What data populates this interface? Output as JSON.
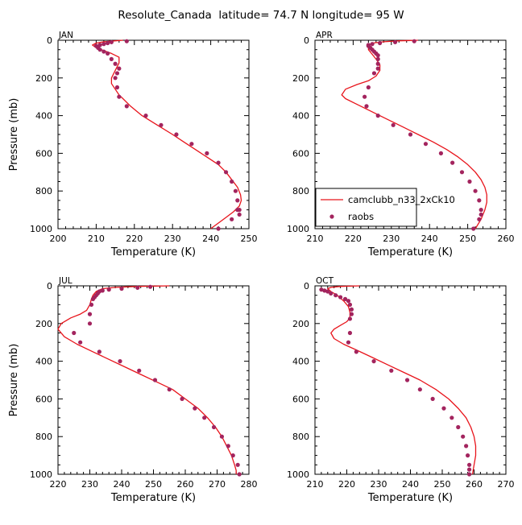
{
  "title": "Resolute_Canada  latitude= 74.7 N longitude= 95 W",
  "chart_data": [
    {
      "type": "line",
      "panel": "JAN",
      "xlabel": "Temperature (K)",
      "ylabel": "Pressure (mb)",
      "xlim": [
        200,
        250
      ],
      "ylim": [
        1000,
        0
      ],
      "xticks": [
        200,
        210,
        220,
        230,
        240,
        250
      ],
      "yticks": [
        0,
        200,
        400,
        600,
        800,
        1000
      ],
      "series": [
        {
          "name": "camclubb_n33_2xCk10",
          "kind": "line",
          "color": "#e8141b",
          "x": [
            217,
            215,
            212,
            210,
            209,
            210,
            212,
            214,
            216,
            216,
            215,
            214,
            214,
            215,
            216,
            217,
            219,
            222,
            226,
            230,
            233,
            236,
            239,
            242,
            244,
            245.5,
            247,
            247.8,
            248,
            247.5,
            246,
            244,
            242,
            240
          ],
          "y": [
            0,
            3,
            8,
            15,
            25,
            40,
            55,
            70,
            90,
            120,
            160,
            200,
            230,
            260,
            290,
            310,
            350,
            400,
            450,
            500,
            540,
            580,
            620,
            660,
            700,
            740,
            780,
            820,
            850,
            880,
            910,
            940,
            970,
            1000
          ]
        },
        {
          "name": "raobs",
          "kind": "scatter",
          "color": "#a3245e",
          "x": [
            218,
            214,
            213,
            212,
            211,
            210,
            210.5,
            211,
            212,
            213,
            214,
            215,
            216,
            215.5,
            215,
            215.5,
            216,
            218,
            223,
            227,
            231,
            235,
            239,
            242,
            244,
            245.5,
            246.5,
            247,
            247.5,
            247.5,
            247,
            245.5,
            242
          ],
          "y": [
            5,
            10,
            15,
            20,
            25,
            30,
            40,
            50,
            60,
            70,
            100,
            125,
            150,
            175,
            200,
            250,
            300,
            350,
            400,
            450,
            500,
            550,
            600,
            650,
            700,
            750,
            800,
            850,
            900,
            925,
            900,
            950,
            1000
          ]
        }
      ]
    },
    {
      "type": "line",
      "panel": "APR",
      "xlabel": "Temperature (K)",
      "ylabel": "",
      "xlim": [
        210,
        260
      ],
      "ylim": [
        1000,
        0
      ],
      "xticks": [
        210,
        220,
        230,
        240,
        250,
        260
      ],
      "yticks": [
        0,
        200,
        400,
        600,
        800,
        1000
      ],
      "legend": {
        "placement": "lower-left",
        "entries": [
          "camclubb_n33_2xCk10",
          "raobs"
        ]
      },
      "series": [
        {
          "name": "camclubb_n33_2xCk10",
          "kind": "line",
          "color": "#e8141b",
          "x": [
            237,
            232,
            228,
            225,
            224,
            224,
            225,
            226,
            227,
            227,
            226,
            224,
            221,
            218,
            217,
            218,
            221,
            225,
            229,
            233,
            237,
            241,
            244.5,
            247.5,
            250,
            252,
            253.5,
            254.5,
            255,
            255,
            254.5,
            253.5,
            252
          ],
          "y": [
            0,
            3,
            8,
            15,
            30,
            50,
            75,
            100,
            130,
            160,
            190,
            215,
            235,
            260,
            290,
            310,
            340,
            380,
            420,
            460,
            500,
            540,
            580,
            620,
            660,
            700,
            740,
            780,
            820,
            860,
            900,
            950,
            1000
          ]
        },
        {
          "name": "raobs",
          "kind": "scatter",
          "color": "#a3245e",
          "x": [
            236,
            231,
            227,
            225,
            224,
            224,
            224.5,
            225,
            225.5,
            226,
            226.5,
            226.5,
            226.5,
            226.5,
            225.5,
            224,
            223,
            223.5,
            226.5,
            230.5,
            235,
            239,
            243,
            246,
            248.5,
            250.5,
            252,
            253,
            253.5,
            253.5,
            253,
            251.5
          ],
          "y": [
            5,
            10,
            15,
            20,
            25,
            30,
            40,
            50,
            60,
            70,
            80,
            100,
            125,
            150,
            175,
            250,
            300,
            350,
            400,
            450,
            500,
            550,
            600,
            650,
            700,
            750,
            800,
            850,
            900,
            925,
            950,
            1000
          ]
        }
      ]
    },
    {
      "type": "line",
      "panel": "JUL",
      "xlabel": "Temperature (K)",
      "ylabel": "Pressure (mb)",
      "xlim": [
        220,
        280
      ],
      "ylim": [
        1000,
        0
      ],
      "xticks": [
        220,
        230,
        240,
        250,
        260,
        270,
        280
      ],
      "yticks": [
        0,
        200,
        400,
        600,
        800,
        1000
      ],
      "series": [
        {
          "name": "camclubb_n33_2xCk10",
          "kind": "line",
          "color": "#e8141b",
          "x": [
            255,
            245,
            238,
            234,
            232,
            231,
            230.5,
            230,
            229,
            227,
            224,
            221,
            220,
            222,
            226,
            231,
            236,
            241,
            246,
            251,
            256,
            260,
            264,
            267,
            269.5,
            271.5,
            273,
            274.5,
            275.5,
            276,
            276
          ],
          "y": [
            0,
            3,
            8,
            15,
            30,
            50,
            70,
            100,
            130,
            150,
            170,
            200,
            230,
            270,
            310,
            350,
            390,
            430,
            470,
            510,
            550,
            600,
            650,
            700,
            750,
            800,
            850,
            900,
            950,
            980,
            1000
          ]
        },
        {
          "name": "raobs",
          "kind": "scatter",
          "color": "#a3245e",
          "x": [
            249,
            245,
            240,
            236,
            234,
            233,
            232.5,
            232,
            231.5,
            231,
            230.5,
            230,
            230,
            225,
            227,
            233,
            239.5,
            245.5,
            250.5,
            255,
            259,
            263,
            266,
            269,
            271.5,
            273.5,
            275,
            276.5,
            277
          ],
          "y": [
            5,
            10,
            15,
            20,
            25,
            30,
            40,
            50,
            60,
            70,
            100,
            150,
            200,
            250,
            300,
            350,
            400,
            450,
            500,
            550,
            600,
            650,
            700,
            750,
            800,
            850,
            900,
            950,
            1000
          ]
        }
      ]
    },
    {
      "type": "line",
      "panel": "OCT",
      "xlabel": "Temperature (K)",
      "ylabel": "",
      "xlim": [
        210,
        270
      ],
      "ylim": [
        1000,
        0
      ],
      "xticks": [
        210,
        220,
        230,
        240,
        250,
        260,
        270
      ],
      "yticks": [
        0,
        200,
        400,
        600,
        800,
        1000
      ],
      "series": [
        {
          "name": "camclubb_n33_2xCk10",
          "kind": "line",
          "color": "#e8141b",
          "x": [
            224,
            218,
            215,
            214,
            215,
            217,
            219,
            220.5,
            221,
            221,
            220,
            218,
            216,
            215,
            216,
            219,
            223,
            228,
            233,
            238,
            243,
            248,
            252,
            255,
            257.5,
            259,
            260,
            260.5,
            260.5,
            260,
            259.5
          ],
          "y": [
            0,
            3,
            8,
            15,
            30,
            50,
            80,
            110,
            140,
            170,
            190,
            210,
            230,
            250,
            280,
            310,
            340,
            380,
            420,
            460,
            500,
            550,
            600,
            650,
            700,
            750,
            800,
            850,
            900,
            950,
            1000
          ]
        },
        {
          "name": "raobs",
          "kind": "scatter",
          "color": "#a3245e",
          "x": [
            212,
            213,
            214,
            215,
            216.5,
            218,
            219.5,
            220.5,
            221,
            221.5,
            221.5,
            221,
            221,
            220.5,
            223,
            228.5,
            234,
            239,
            243,
            247,
            250.5,
            253,
            255,
            256.5,
            257.5,
            258,
            258.5,
            258.5,
            258.5
          ],
          "y": [
            20,
            25,
            30,
            40,
            50,
            60,
            70,
            80,
            100,
            125,
            150,
            175,
            250,
            300,
            350,
            400,
            450,
            500,
            550,
            600,
            650,
            700,
            750,
            800,
            850,
            900,
            950,
            975,
            1000
          ]
        }
      ]
    }
  ]
}
